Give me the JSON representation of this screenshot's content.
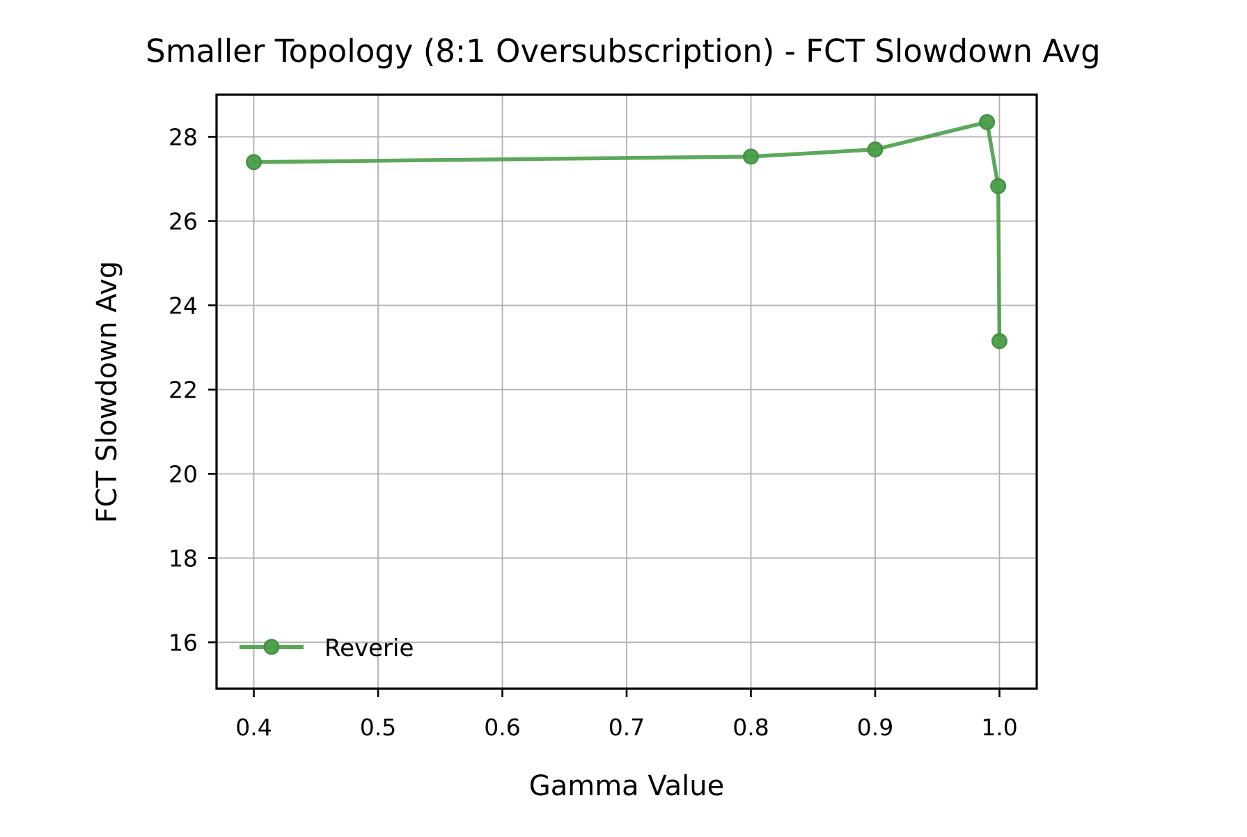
{
  "chart_data": {
    "type": "line",
    "title": "Smaller Topology (8:1 Oversubscription) - FCT Slowdown Avg",
    "xlabel": "Gamma Value",
    "ylabel": "FCT Slowdown Avg",
    "xlim": [
      0.37,
      1.03
    ],
    "ylim": [
      14.9,
      29.0
    ],
    "xticks": [
      0.4,
      0.5,
      0.6,
      0.7,
      0.8,
      0.9,
      1.0
    ],
    "xtick_labels": [
      "0.4",
      "0.5",
      "0.6",
      "0.7",
      "0.8",
      "0.9",
      "1.0"
    ],
    "yticks": [
      16,
      18,
      20,
      22,
      24,
      26,
      28
    ],
    "ytick_labels": [
      "16",
      "18",
      "20",
      "22",
      "24",
      "26",
      "28"
    ],
    "grid": true,
    "legend_position": "lower-left",
    "series": [
      {
        "name": "Reverie",
        "color": "#4a9e48",
        "marker": "circle",
        "x": [
          0.4,
          0.8,
          0.9,
          0.99,
          0.999,
          1.0
        ],
        "y": [
          27.4,
          27.53,
          27.7,
          28.35,
          26.83,
          23.15
        ]
      }
    ]
  }
}
